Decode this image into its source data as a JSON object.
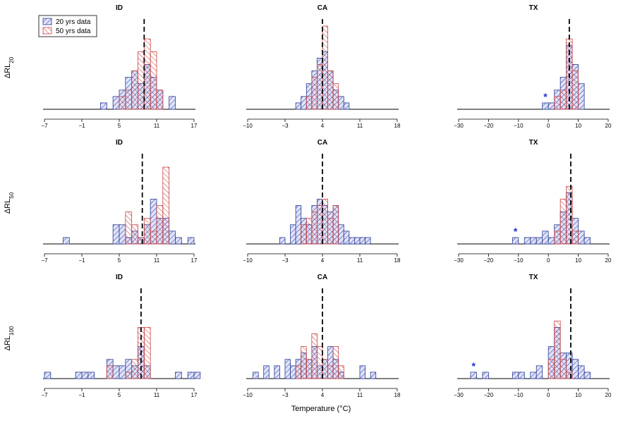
{
  "figure": {
    "xlabel": "Temperature (°C)",
    "legend": {
      "placement": "top-left",
      "entries": [
        {
          "label": "20 yrs data",
          "color": "#2b3a8f",
          "fill": "#c7cdf5"
        },
        {
          "label": "50 yrs data",
          "color": "#c84040",
          "fill": "#f7c9c9"
        }
      ]
    },
    "rows": [
      {
        "label_main": "ΔRL",
        "label_sub": "20"
      },
      {
        "label_main": "ΔRL",
        "label_sub": "50"
      },
      {
        "label_main": "ΔRL",
        "label_sub": "100"
      }
    ]
  },
  "chart_data": [
    {
      "type": "bar",
      "title": "ID",
      "row": 0,
      "col": 0,
      "xlim": [
        -7,
        17
      ],
      "ticks": [
        -7,
        -1,
        5,
        11,
        17
      ],
      "tick_labels": [
        "−7",
        "−1",
        "5",
        "11",
        "17"
      ],
      "binwidth": 1,
      "dashed_x": 9,
      "marker": null,
      "series": [
        {
          "name": "20 yrs data",
          "start": 2,
          "counts": [
            1,
            0,
            2,
            3,
            5,
            6,
            4,
            7,
            5,
            3,
            0,
            2,
            0,
            0,
            0,
            0,
            0
          ]
        },
        {
          "name": "50 yrs data",
          "start": 2,
          "counts": [
            0,
            0,
            0,
            2,
            3,
            6,
            9,
            11,
            9,
            3,
            0,
            0,
            0,
            0,
            0,
            0,
            0
          ]
        }
      ]
    },
    {
      "type": "bar",
      "title": "CA",
      "row": 0,
      "col": 1,
      "xlim": [
        -10,
        18
      ],
      "ticks": [
        -10,
        -3,
        4,
        11,
        18
      ],
      "tick_labels": [
        "−10",
        "−3",
        "4",
        "11",
        "18"
      ],
      "binwidth": 1,
      "dashed_x": 4,
      "marker": null,
      "series": [
        {
          "name": "20 yrs data",
          "start": -1,
          "counts": [
            1,
            2,
            4,
            6,
            8,
            9,
            6,
            3,
            2,
            1
          ]
        },
        {
          "name": "50 yrs data",
          "start": -1,
          "counts": [
            0,
            0,
            2,
            5,
            7,
            13,
            6,
            4,
            0,
            0
          ]
        }
      ]
    },
    {
      "type": "bar",
      "title": "TX",
      "row": 0,
      "col": 2,
      "xlim": [
        -30,
        20
      ],
      "ticks": [
        -30,
        -20,
        -10,
        0,
        10,
        20
      ],
      "tick_labels": [
        "−30",
        "−20",
        "−10",
        "0",
        "10",
        "20"
      ],
      "binwidth": 2,
      "dashed_x": 7,
      "marker": {
        "x": -1,
        "text": "*"
      },
      "series": [
        {
          "name": "20 yrs data",
          "start": -2,
          "counts": [
            1,
            1,
            3,
            5,
            10,
            7,
            4
          ]
        },
        {
          "name": "50 yrs data",
          "start": -2,
          "counts": [
            0,
            0,
            2,
            3,
            11,
            6,
            0
          ]
        }
      ]
    },
    {
      "type": "bar",
      "title": "ID",
      "row": 1,
      "col": 0,
      "xlim": [
        -7,
        17
      ],
      "ticks": [
        -7,
        -1,
        5,
        11,
        17
      ],
      "tick_labels": [
        "−7",
        "−1",
        "5",
        "11",
        "17"
      ],
      "binwidth": 1,
      "dashed_x": 8.7,
      "marker": null,
      "series": [
        {
          "name": "20 yrs data",
          "start": -4,
          "counts": [
            1,
            0,
            0,
            0,
            0,
            0,
            0,
            0,
            3,
            3,
            1,
            2,
            1,
            3,
            7,
            4,
            4,
            2,
            1,
            0,
            1
          ]
        },
        {
          "name": "50 yrs data",
          "start": -4,
          "counts": [
            0,
            0,
            0,
            0,
            0,
            0,
            0,
            0,
            0,
            0,
            5,
            3,
            1,
            4,
            2,
            6,
            12,
            0,
            0,
            0,
            0
          ]
        }
      ]
    },
    {
      "type": "bar",
      "title": "CA",
      "row": 1,
      "col": 1,
      "xlim": [
        -10,
        18
      ],
      "ticks": [
        -10,
        -3,
        4,
        11,
        18
      ],
      "tick_labels": [
        "−10",
        "−3",
        "4",
        "11",
        "18"
      ],
      "binwidth": 1,
      "dashed_x": 4,
      "marker": null,
      "series": [
        {
          "name": "20 yrs data",
          "start": -4,
          "counts": [
            1,
            0,
            3,
            6,
            4,
            3,
            6,
            7,
            6,
            5,
            6,
            3,
            2,
            1,
            1,
            1,
            1
          ]
        },
        {
          "name": "50 yrs data",
          "start": -4,
          "counts": [
            0,
            0,
            0,
            0,
            3,
            4,
            5,
            6,
            7,
            4,
            6,
            0,
            0,
            0,
            0,
            0,
            0
          ]
        }
      ]
    },
    {
      "type": "bar",
      "title": "TX",
      "row": 1,
      "col": 2,
      "xlim": [
        -30,
        20
      ],
      "ticks": [
        -30,
        -20,
        -10,
        0,
        10,
        20
      ],
      "tick_labels": [
        "−30",
        "−20",
        "−10",
        "0",
        "10",
        "20"
      ],
      "binwidth": 2,
      "dashed_x": 7.5,
      "marker": {
        "x": -11,
        "text": "*"
      },
      "series": [
        {
          "name": "20 yrs data",
          "start": -12,
          "counts": [
            1,
            0,
            1,
            1,
            1,
            2,
            1,
            3,
            5,
            8,
            4,
            2,
            1
          ]
        },
        {
          "name": "50 yrs data",
          "start": -12,
          "counts": [
            0,
            0,
            0,
            0,
            0,
            0,
            0,
            2,
            7,
            9,
            2,
            0,
            0
          ]
        }
      ]
    },
    {
      "type": "bar",
      "title": "ID",
      "row": 2,
      "col": 0,
      "xlim": [
        -7,
        17
      ],
      "ticks": [
        -7,
        -1,
        5,
        11,
        17
      ],
      "tick_labels": [
        "−7",
        "−1",
        "5",
        "11",
        "17"
      ],
      "binwidth": 1,
      "dashed_x": 8.5,
      "marker": null,
      "series": [
        {
          "name": "20 yrs data",
          "start": -7,
          "counts": [
            1,
            0,
            0,
            0,
            0,
            1,
            1,
            1,
            0,
            0,
            3,
            2,
            2,
            3,
            2,
            5,
            2,
            0,
            0,
            0,
            0,
            1,
            0,
            1,
            1
          ]
        },
        {
          "name": "50 yrs data",
          "start": -7,
          "counts": [
            0,
            0,
            0,
            0,
            0,
            0,
            0,
            0,
            0,
            0,
            2,
            0,
            0,
            1,
            3,
            8,
            8,
            0,
            0,
            0,
            0,
            0,
            0,
            0,
            0
          ]
        }
      ]
    },
    {
      "type": "bar",
      "title": "CA",
      "row": 2,
      "col": 1,
      "xlim": [
        -10,
        18
      ],
      "ticks": [
        -10,
        -3,
        4,
        11,
        18
      ],
      "tick_labels": [
        "−10",
        "−3",
        "4",
        "11",
        "18"
      ],
      "binwidth": 1,
      "dashed_x": 4,
      "marker": null,
      "series": [
        {
          "name": "20 yrs data",
          "start": -9,
          "counts": [
            1,
            0,
            2,
            0,
            2,
            0,
            3,
            2,
            3,
            4,
            3,
            5,
            2,
            3,
            5,
            3,
            1,
            0,
            0,
            0,
            2,
            0,
            1,
            0,
            0,
            0
          ]
        },
        {
          "name": "50 yrs data",
          "start": -9,
          "counts": [
            0,
            0,
            0,
            0,
            0,
            0,
            0,
            0,
            2,
            5,
            3,
            7,
            5,
            3,
            2,
            5,
            2,
            0,
            0,
            0,
            0,
            0,
            0,
            0,
            0,
            0
          ]
        }
      ]
    },
    {
      "type": "bar",
      "title": "TX",
      "row": 2,
      "col": 2,
      "xlim": [
        -30,
        20
      ],
      "ticks": [
        -30,
        -20,
        -10,
        0,
        10,
        20
      ],
      "tick_labels": [
        "−30",
        "−20",
        "−10",
        "0",
        "10",
        "20"
      ],
      "binwidth": 2,
      "dashed_x": 7.5,
      "marker": {
        "x": -25,
        "text": "*"
      },
      "series": [
        {
          "name": "20 yrs data",
          "start": -26,
          "counts": [
            1,
            0,
            1,
            0,
            0,
            0,
            0,
            1,
            1,
            0,
            1,
            2,
            0,
            5,
            8,
            4,
            4,
            3,
            2,
            1
          ]
        },
        {
          "name": "50 yrs data",
          "start": -26,
          "counts": [
            0,
            0,
            0,
            0,
            0,
            0,
            0,
            0,
            0,
            0,
            0,
            0,
            0,
            3,
            9,
            3,
            1,
            0,
            0,
            0
          ]
        }
      ]
    }
  ]
}
